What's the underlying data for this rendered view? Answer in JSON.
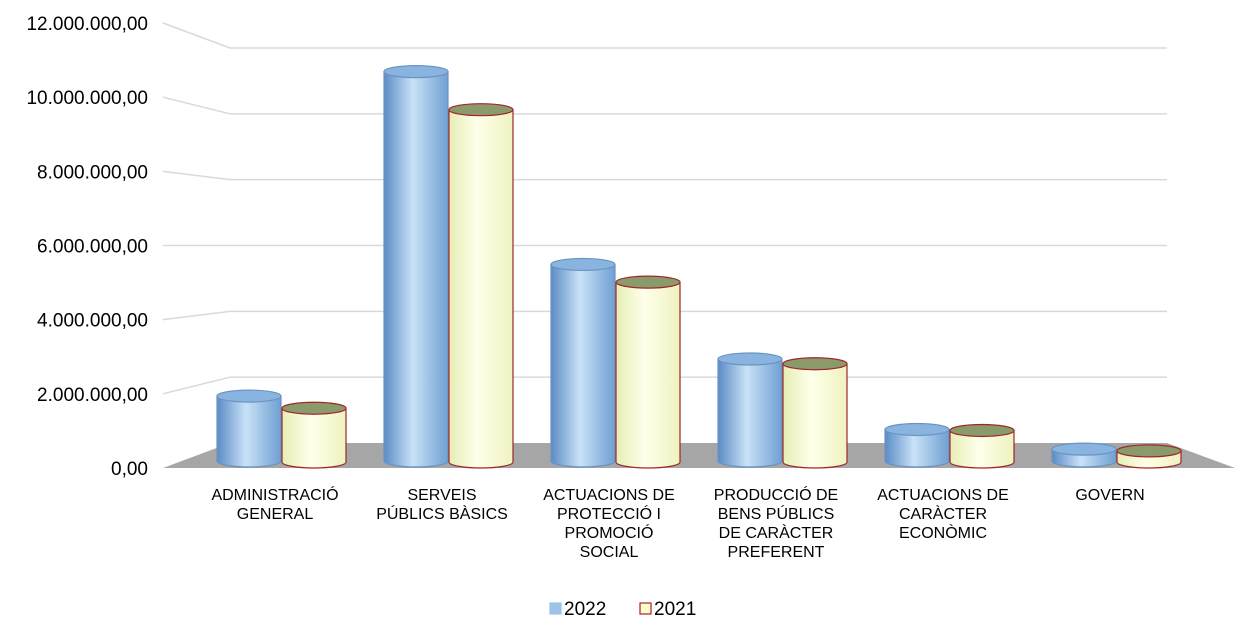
{
  "chart_data": {
    "type": "bar",
    "title": "",
    "xlabel": "",
    "ylabel": "",
    "ylim": [
      0,
      12000000
    ],
    "yticks": [
      "0,00",
      "2.000.000,00",
      "4.000.000,00",
      "6.000.000,00",
      "8.000.000,00",
      "10.000.000,00",
      "12.000.000,00"
    ],
    "grid": true,
    "legend_position": "bottom",
    "categories": [
      [
        "ADMINISTRACIÓ",
        "GENERAL"
      ],
      [
        "SERVEIS",
        "PÚBLICS BÀSICS"
      ],
      [
        "ACTUACIONS DE",
        "PROTECCIÓ I",
        "PROMOCIÓ",
        "SOCIAL"
      ],
      [
        "PRODUCCIÓ DE",
        "BENS PÚBLICS",
        "DE CARÀCTER",
        "PREFERENT"
      ],
      [
        "ACTUACIONS DE",
        "CARÀCTER",
        "ECONÒMIC"
      ],
      [
        "GOVERN"
      ]
    ],
    "series": [
      {
        "name": "2022",
        "color": "#9dc3e6",
        "values": [
          1750000,
          10500000,
          5300000,
          2750000,
          850000,
          320000
        ]
      },
      {
        "name": "2021",
        "color": "#ffffcc",
        "outline": "#a0262a",
        "values": [
          1450000,
          9500000,
          4850000,
          2650000,
          850000,
          300000
        ]
      }
    ]
  }
}
